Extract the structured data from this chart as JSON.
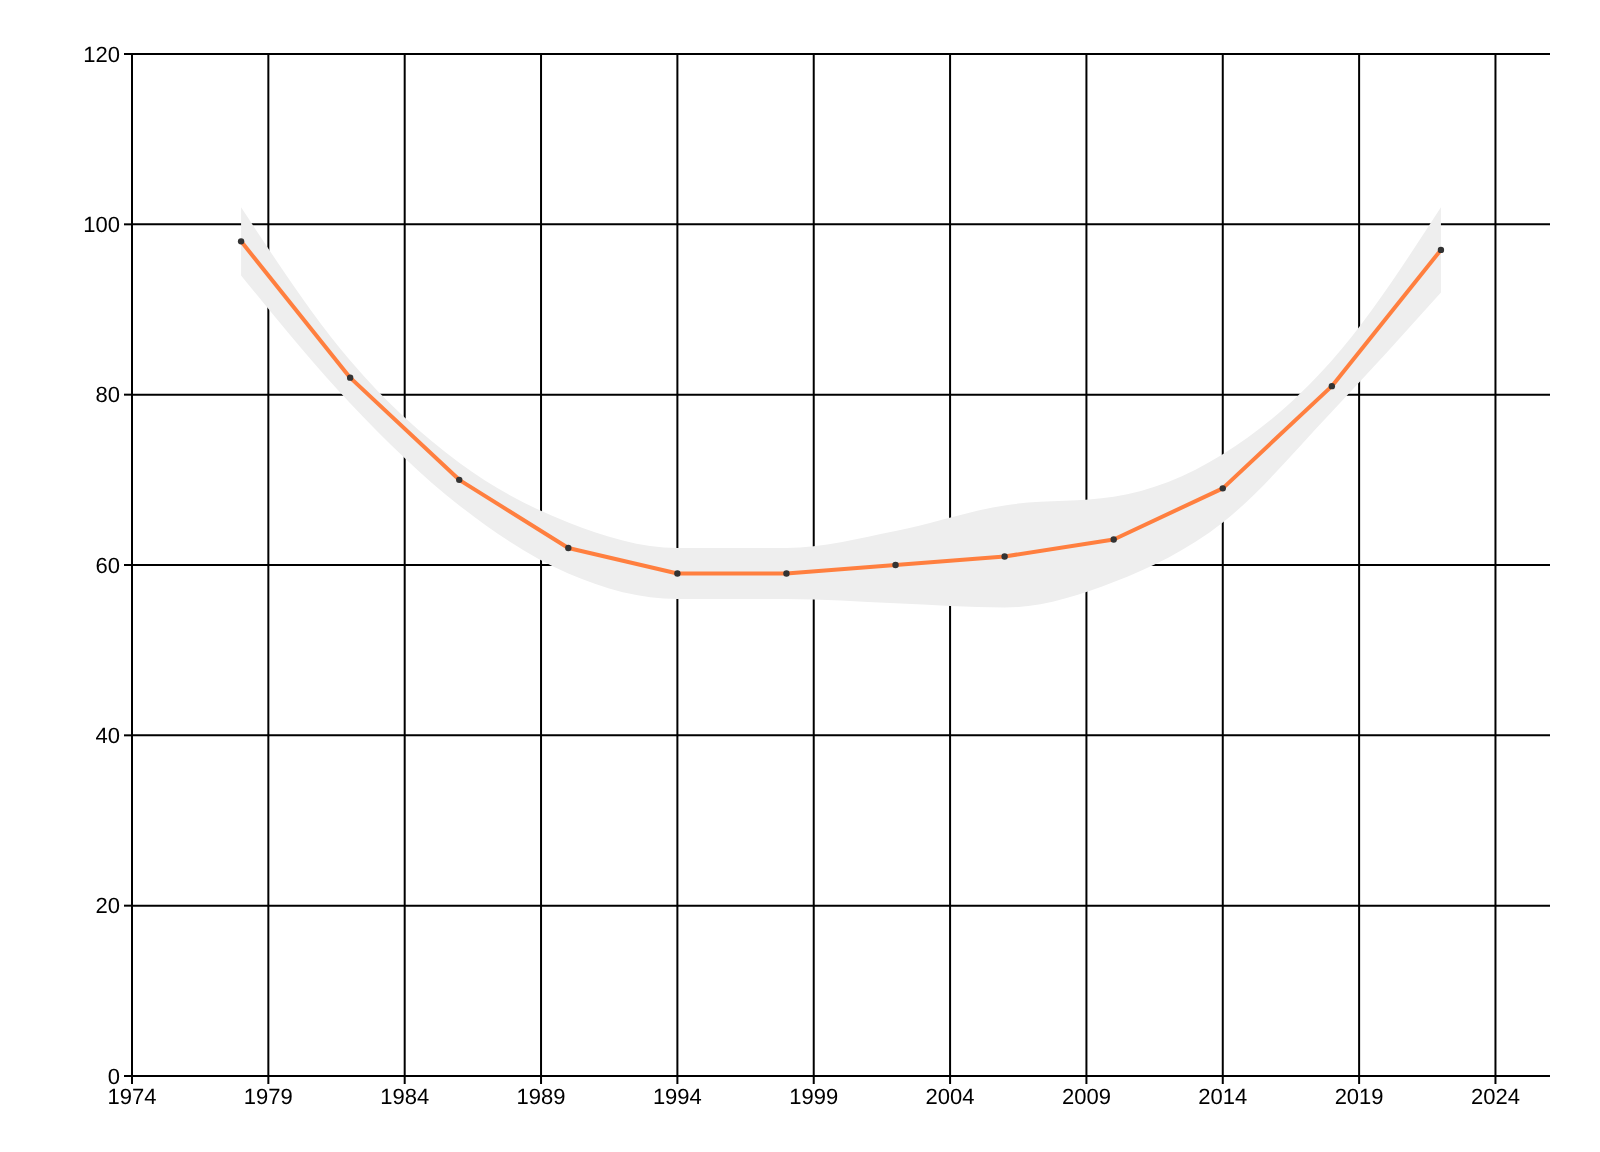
{
  "chart_data": {
    "type": "line",
    "x": [
      1978,
      1982,
      1986,
      1990,
      1994,
      1998,
      2002,
      2006,
      2010,
      2014,
      2018,
      2022
    ],
    "series": [
      {
        "color": "#ff7f3f",
        "values": [
          98,
          82,
          70,
          62,
          59,
          59,
          60,
          61,
          63,
          69,
          81,
          97
        ],
        "lower": [
          94,
          79,
          67,
          59,
          56,
          56,
          55.5,
          55,
          58,
          65,
          78,
          92
        ],
        "upper": [
          102,
          84,
          72,
          65,
          62,
          62,
          64,
          67,
          68,
          73,
          84,
          102
        ]
      }
    ],
    "xlim": [
      1974,
      2026
    ],
    "xticks": [
      1974,
      1979,
      1984,
      1989,
      1994,
      1999,
      2004,
      2009,
      2014,
      2019,
      2024
    ],
    "ylim": [
      0,
      120
    ],
    "yticks": [
      0,
      20,
      40,
      60,
      80,
      100,
      120
    ],
    "grid": true,
    "marker": "circle",
    "line_style": "solid"
  }
}
